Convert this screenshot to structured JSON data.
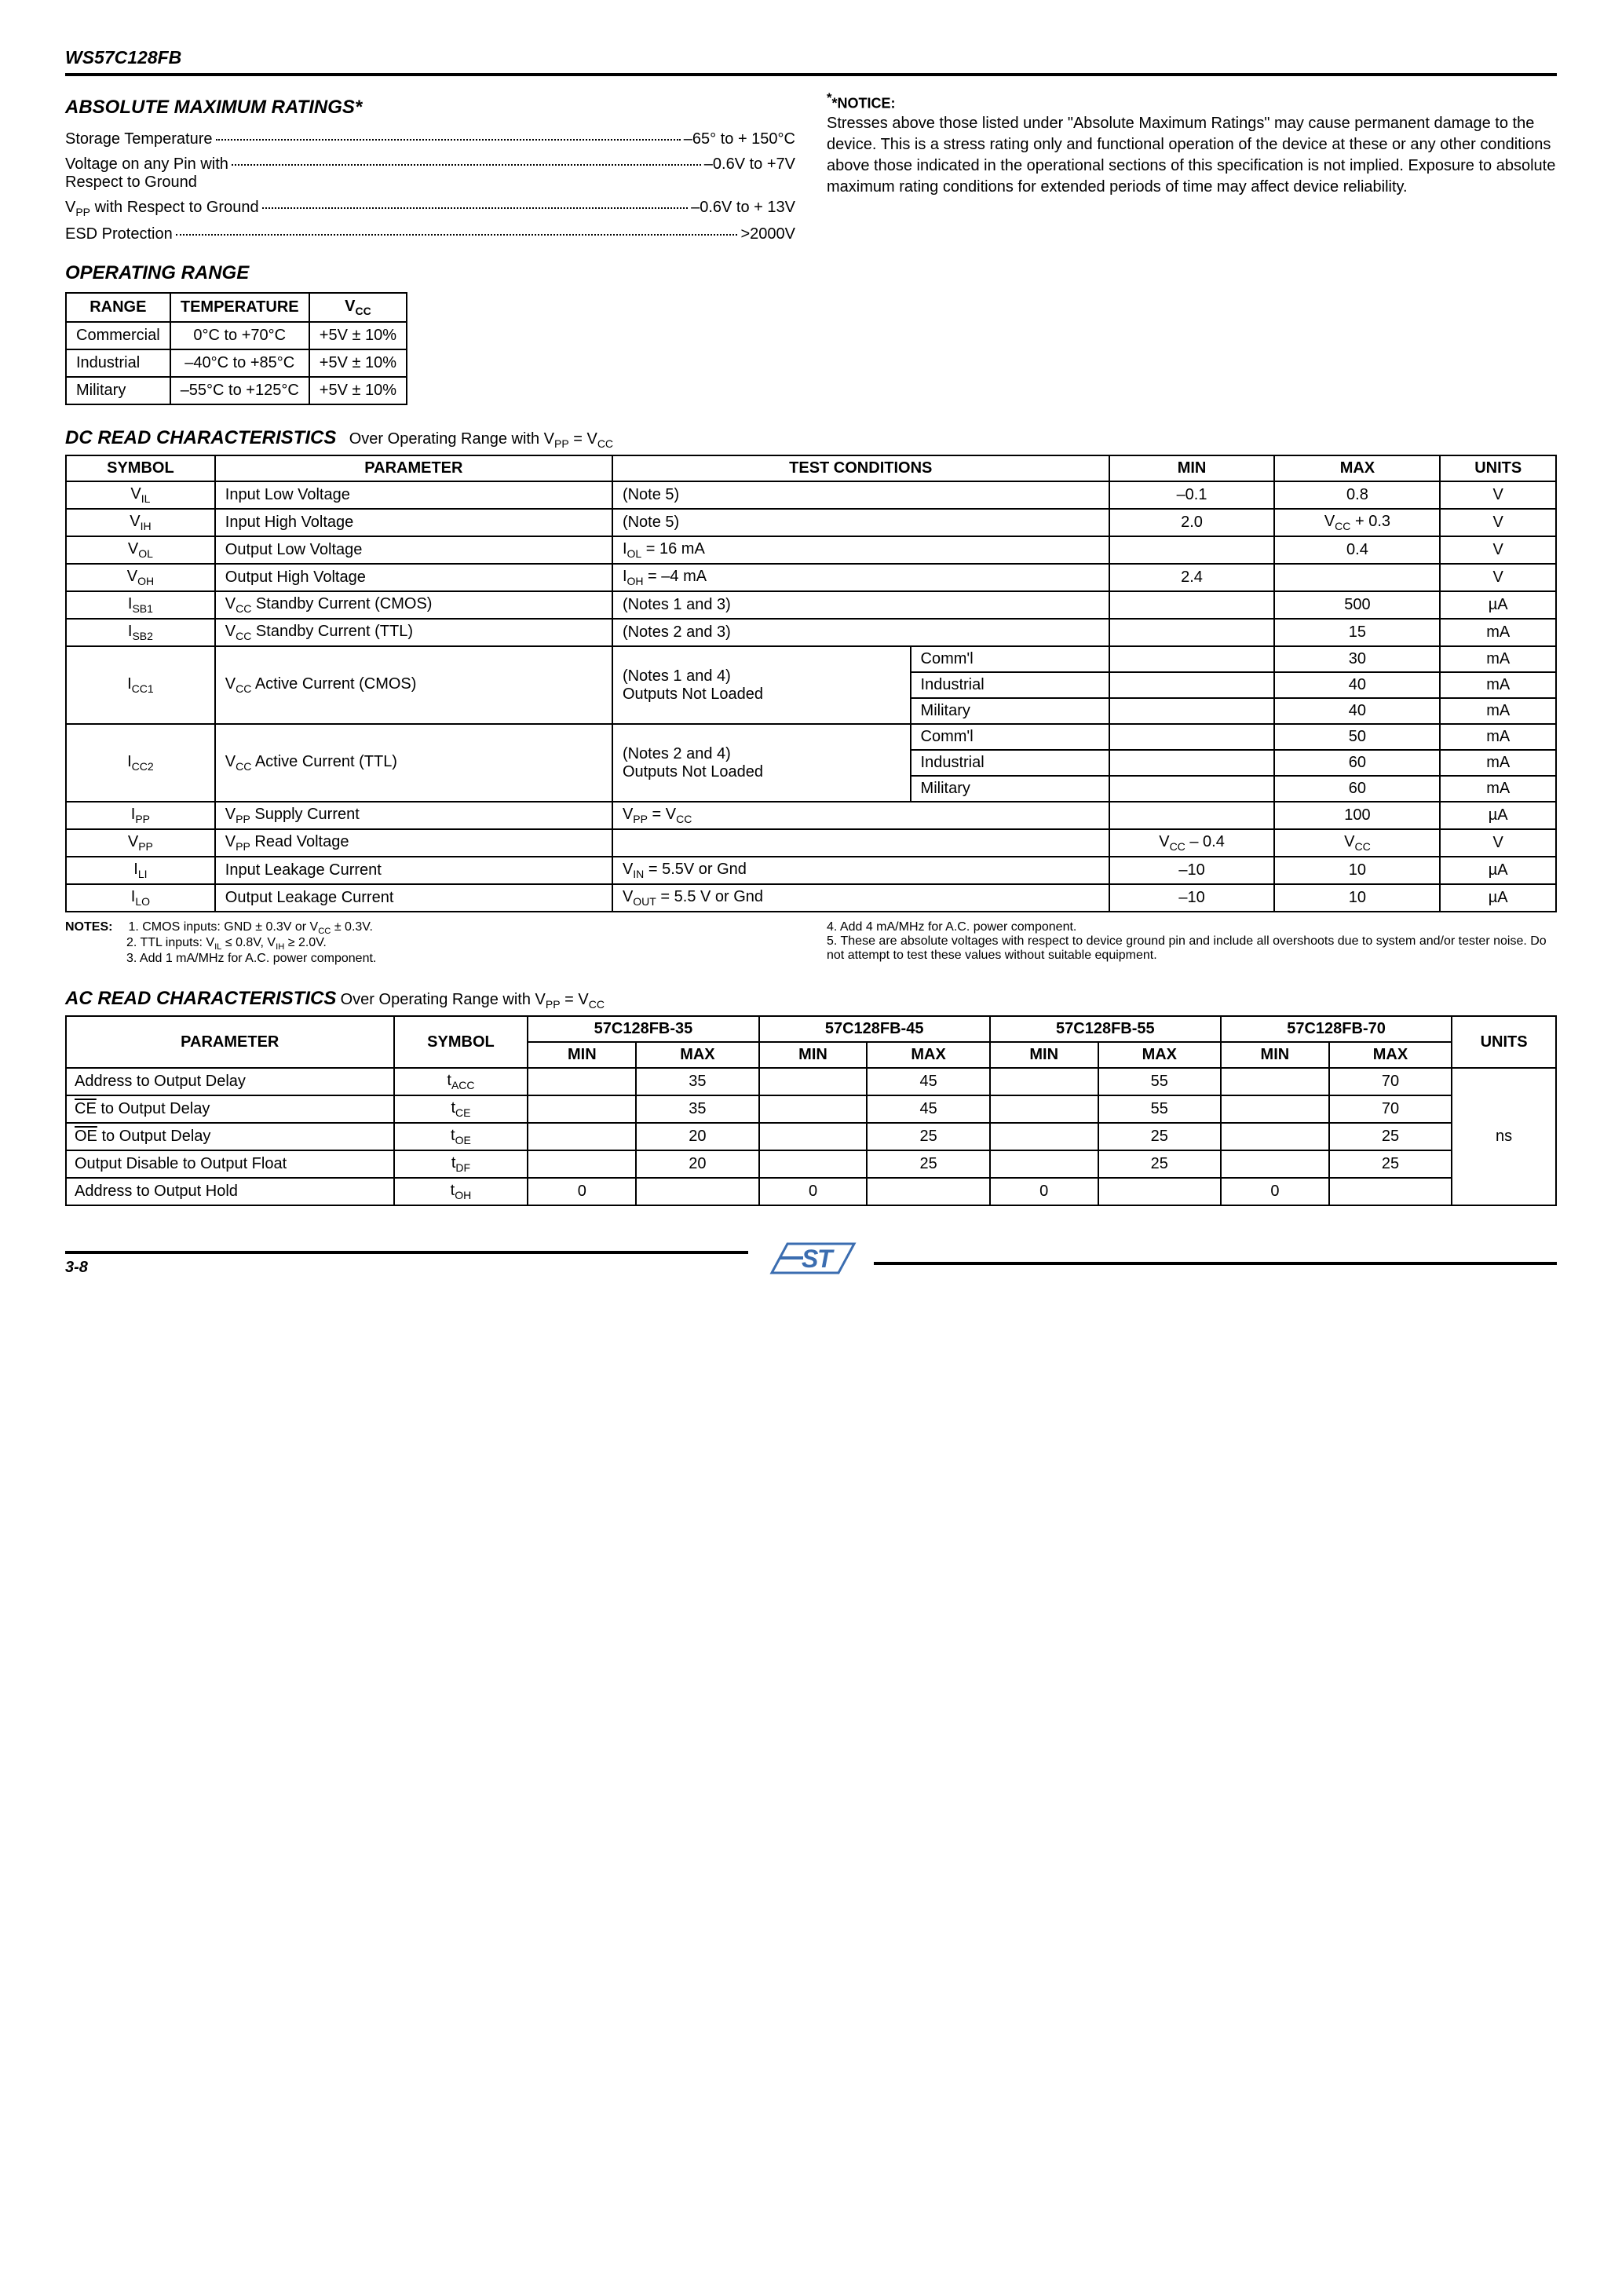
{
  "header": {
    "part_number": "WS57C128FB"
  },
  "abs_max": {
    "title": "ABSOLUTE MAXIMUM RATINGS*",
    "rows": [
      {
        "label": "Storage Temperature",
        "value": "–65° to + 150°C"
      },
      {
        "label": "Voltage on any Pin with\nRespect to Ground ",
        "value": "–0.6V to +7V"
      },
      {
        "label": "V_PP with Respect to Ground",
        "value": "–0.6V to + 13V"
      },
      {
        "label": "ESD Protection",
        "value": ">2000V"
      }
    ]
  },
  "notice": {
    "title": "*NOTICE:",
    "text": "Stresses above those listed under \"Absolute Maximum Ratings\" may cause permanent damage to the device. This is a stress rating only and functional operation of the device at these or any other conditions above those indicated in the operational sections of this specification is not implied. Exposure to absolute maximum rating conditions for extended periods of time may affect device reliability."
  },
  "op_range": {
    "title": "OPERATING RANGE",
    "headers": [
      "RANGE",
      "TEMPERATURE",
      "V_CC"
    ],
    "rows": [
      [
        "Commercial",
        "0°C to +70°C",
        "+5V ± 10%"
      ],
      [
        "Industrial",
        "–40°C to +85°C",
        "+5V ± 10%"
      ],
      [
        "Military",
        "–55°C to +125°C",
        "+5V ± 10%"
      ]
    ]
  },
  "dc_read": {
    "title": "DC READ CHARACTERISTICS",
    "subtitle": "Over Operating Range with V_PP = V_CC",
    "headers": [
      "SYMBOL",
      "PARAMETER",
      "TEST CONDITIONS",
      "MIN",
      "MAX",
      "UNITS"
    ],
    "rows": [
      {
        "sym": "V_IL",
        "param": "Input Low Voltage",
        "cond": "(Note 5)",
        "min": "–0.1",
        "max": "0.8",
        "units": "V"
      },
      {
        "sym": "V_IH",
        "param": "Input High Voltage",
        "cond": "(Note 5)",
        "min": "2.0",
        "max": "V_CC + 0.3",
        "units": "V"
      },
      {
        "sym": "V_OL",
        "param": "Output Low Voltage",
        "cond": "I_OL = 16 mA",
        "min": "",
        "max": "0.4",
        "units": "V"
      },
      {
        "sym": "V_OH",
        "param": "Output High Voltage",
        "cond": "I_OH = –4 mA",
        "min": "2.4",
        "max": "",
        "units": "V"
      },
      {
        "sym": "I_SB1",
        "param": "V_CC Standby Current (CMOS)",
        "cond": "(Notes 1 and 3)",
        "min": "",
        "max": "500",
        "units": "µA"
      },
      {
        "sym": "I_SB2",
        "param": "V_CC Standby Current (TTL)",
        "cond": "(Notes 2 and 3)",
        "min": "",
        "max": "15",
        "units": "mA"
      }
    ],
    "icc1": {
      "sym": "I_CC1",
      "param": "V_CC Active Current (CMOS)",
      "cond": "(Notes 1 and 4)\nOutputs Not Loaded",
      "sub": [
        {
          "r": "Comm'l",
          "max": "30",
          "units": "mA"
        },
        {
          "r": "Industrial",
          "max": "40",
          "units": "mA"
        },
        {
          "r": "Military",
          "max": "40",
          "units": "mA"
        }
      ]
    },
    "icc2": {
      "sym": "I_CC2",
      "param": "V_CC Active Current (TTL)",
      "cond": "(Notes 2 and 4)\nOutputs Not Loaded",
      "sub": [
        {
          "r": "Comm'l",
          "max": "50",
          "units": "mA"
        },
        {
          "r": "Industrial",
          "max": "60",
          "units": "mA"
        },
        {
          "r": "Military",
          "max": "60",
          "units": "mA"
        }
      ]
    },
    "tail": [
      {
        "sym": "I_PP",
        "param": "V_PP Supply Current",
        "cond": "V_PP = V_CC",
        "min": "",
        "max": "100",
        "units": "µA"
      },
      {
        "sym": "V_PP",
        "param": "V_PP Read Voltage",
        "cond": "",
        "min": "V_CC – 0.4",
        "max": "V_CC",
        "units": "V"
      },
      {
        "sym": "I_LI",
        "param": "Input Leakage Current",
        "cond": "V_IN = 5.5V or Gnd",
        "min": "–10",
        "max": "10",
        "units": "µA"
      },
      {
        "sym": "I_LO",
        "param": "Output Leakage Current",
        "cond": "V_OUT = 5.5 V or Gnd",
        "min": "–10",
        "max": "10",
        "units": "µA"
      }
    ]
  },
  "notes": {
    "label": "NOTES:",
    "left": [
      "1. CMOS inputs: GND ± 0.3V or V_CC ± 0.3V.",
      "2. TTL inputs: V_IL ≤ 0.8V, V_IH ≥ 2.0V.",
      "3. Add 1 mA/MHz for A.C. power component."
    ],
    "right": [
      "4. Add 4 mA/MHz for A.C. power component.",
      "5. These are absolute voltages with respect to device ground pin and include all overshoots due to system and/or tester noise. Do not attempt to test these values without suitable equipment."
    ]
  },
  "ac_read": {
    "title": "AC READ CHARACTERISTICS",
    "subtitle": "Over Operating Range with V_PP = V_CC",
    "parts": [
      "57C128FB-35",
      "57C128FB-45",
      "57C128FB-55",
      "57C128FB-70"
    ],
    "headers": [
      "PARAMETER",
      "SYMBOL",
      "MIN",
      "MAX",
      "MIN",
      "MAX",
      "MIN",
      "MAX",
      "MIN",
      "MAX",
      "UNITS"
    ],
    "rows": [
      {
        "param": "Address to Output Delay",
        "sym": "t_ACC",
        "vals": [
          "",
          "35",
          "",
          "45",
          "",
          "55",
          "",
          "70"
        ]
      },
      {
        "param": "CE_bar to Output Delay",
        "sym": "t_CE",
        "vals": [
          "",
          "35",
          "",
          "45",
          "",
          "55",
          "",
          "70"
        ]
      },
      {
        "param": "OE_bar to Output Delay",
        "sym": "t_OE",
        "vals": [
          "",
          "20",
          "",
          "25",
          "",
          "25",
          "",
          "25"
        ]
      },
      {
        "param": "Output Disable to Output Float",
        "sym": "t_DF",
        "vals": [
          "",
          "20",
          "",
          "25",
          "",
          "25",
          "",
          "25"
        ]
      },
      {
        "param": "Address to Output Hold",
        "sym": "t_OH",
        "vals": [
          "0",
          "",
          "0",
          "",
          "0",
          "",
          "0",
          ""
        ]
      }
    ],
    "units": "ns"
  },
  "footer": {
    "page": "3-8"
  },
  "colors": {
    "text": "#000000",
    "bg": "#ffffff",
    "logo_fill": "#3b6db0"
  }
}
